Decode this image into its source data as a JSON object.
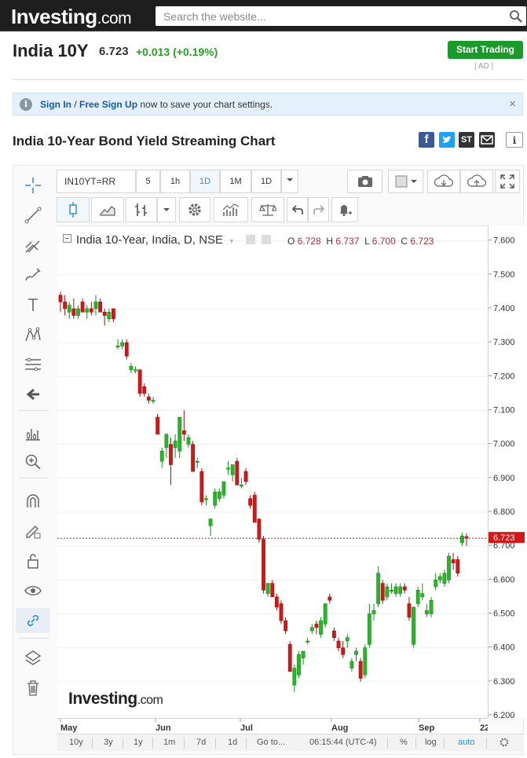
{
  "header": {
    "logo_main": "Investing",
    "logo_suffix": ".com",
    "search_placeholder": "Search the website..."
  },
  "instrument": {
    "name": "India 10Y",
    "price": "6.723",
    "change": "+0.013 (+0.19%)",
    "cta_label": "Start Trading",
    "ad_label": "| AD |"
  },
  "notice": {
    "sign_in": "Sign In",
    "separator": " / ",
    "sign_up": "Free Sign Up",
    "message": " now to save your chart settings.",
    "close": "×"
  },
  "section_title": "India 10-Year Bond Yield Streaming Chart",
  "share": {
    "facebook": "f",
    "stocktwits": "ST",
    "info": "i"
  },
  "toolbar": {
    "symbol": "IN10YT=RR",
    "intervals": [
      "5",
      "1h",
      "1D",
      "1M"
    ],
    "active_interval": "1D",
    "resolution": "1D"
  },
  "chart_legend": {
    "title": "India 10-Year, India, D, NSE",
    "o_label": "O",
    "o": "6.728",
    "h_label": "H",
    "h": "6.737",
    "l_label": "L",
    "l": "6.700",
    "c_label": "C",
    "c": "6.723",
    "last_price": "6.723"
  },
  "watermark": {
    "main": "Investing",
    "suffix": ".com"
  },
  "bottom_bar": {
    "ranges": [
      "10y",
      "3y",
      "1y",
      "1m",
      "7d",
      "1d"
    ],
    "goto": "Go to...",
    "clock": "06:15:44 (UTC-4)",
    "percent": "%",
    "log": "log",
    "auto": "auto"
  },
  "colors": {
    "up": "#2ab52a",
    "down": "#d01818",
    "accent": "#2a8fd6",
    "cta": "#1a9a2b"
  },
  "chart_data": {
    "type": "candlestick",
    "title": "India 10-Year, India, D, NSE",
    "y_ticks": [
      "7.600",
      "7.500",
      "7.400",
      "7.300",
      "7.200",
      "7.100",
      "7.000",
      "6.900",
      "6.800",
      "6.700",
      "6.600",
      "6.500",
      "6.400",
      "6.300",
      "6.200"
    ],
    "x_ticks": [
      "May",
      "Jun",
      "Jul",
      "Aug",
      "Sep",
      "22"
    ],
    "ylim": [
      6.2,
      7.62
    ],
    "candles": [
      {
        "o": 7.44,
        "h": 7.45,
        "l": 7.39,
        "c": 7.42
      },
      {
        "o": 7.42,
        "h": 7.44,
        "l": 7.38,
        "c": 7.4
      },
      {
        "o": 7.39,
        "h": 7.42,
        "l": 7.37,
        "c": 7.41
      },
      {
        "o": 7.4,
        "h": 7.43,
        "l": 7.37,
        "c": 7.38
      },
      {
        "o": 7.38,
        "h": 7.41,
        "l": 7.37,
        "c": 7.4
      },
      {
        "o": 7.42,
        "h": 7.43,
        "l": 7.39,
        "c": 7.39
      },
      {
        "o": 7.39,
        "h": 7.41,
        "l": 7.37,
        "c": 7.4
      },
      {
        "o": 7.4,
        "h": 7.42,
        "l": 7.38,
        "c": 7.39
      },
      {
        "o": 7.4,
        "h": 7.44,
        "l": 7.38,
        "c": 7.42
      },
      {
        "o": 7.42,
        "h": 7.43,
        "l": 7.39,
        "c": 7.39
      },
      {
        "o": 7.39,
        "h": 7.4,
        "l": 7.35,
        "c": 7.38
      },
      {
        "o": 7.37,
        "h": 7.4,
        "l": 7.36,
        "c": 7.39
      },
      {
        "o": 7.4,
        "h": 7.4,
        "l": 7.36,
        "c": 7.37
      },
      {
        "o": 7.29,
        "h": 7.31,
        "l": 7.28,
        "c": 7.29
      },
      {
        "o": 7.29,
        "h": 7.31,
        "l": 7.28,
        "c": 7.3
      },
      {
        "o": 7.3,
        "h": 7.31,
        "l": 7.25,
        "c": 7.26
      },
      {
        "o": 7.22,
        "h": 7.24,
        "l": 7.21,
        "c": 7.23
      },
      {
        "o": 7.22,
        "h": 7.23,
        "l": 7.21,
        "c": 7.22
      },
      {
        "o": 7.22,
        "h": 7.22,
        "l": 7.14,
        "c": 7.15
      },
      {
        "o": 7.17,
        "h": 7.18,
        "l": 7.14,
        "c": 7.15
      },
      {
        "o": 7.14,
        "h": 7.15,
        "l": 7.12,
        "c": 7.13
      },
      {
        "o": 7.13,
        "h": 7.14,
        "l": 7.12,
        "c": 7.13
      },
      {
        "o": 7.08,
        "h": 7.09,
        "l": 7.03,
        "c": 7.03
      },
      {
        "o": 6.95,
        "h": 6.99,
        "l": 6.93,
        "c": 6.98
      },
      {
        "o": 6.99,
        "h": 7.03,
        "l": 6.96,
        "c": 7.03
      },
      {
        "o": 7.0,
        "h": 7.02,
        "l": 6.88,
        "c": 6.94
      },
      {
        "o": 6.99,
        "h": 7.03,
        "l": 6.96,
        "c": 7.01
      },
      {
        "o": 6.98,
        "h": 7.08,
        "l": 6.96,
        "c": 7.08
      },
      {
        "o": 7.04,
        "h": 7.1,
        "l": 7.01,
        "c": 7.03
      },
      {
        "o": 7.0,
        "h": 7.03,
        "l": 6.99,
        "c": 7.02
      },
      {
        "o": 7.0,
        "h": 7.01,
        "l": 6.92,
        "c": 6.92
      },
      {
        "o": 6.95,
        "h": 6.96,
        "l": 6.93,
        "c": 6.95
      },
      {
        "o": 6.92,
        "h": 6.93,
        "l": 6.82,
        "c": 6.83
      },
      {
        "o": 6.84,
        "h": 6.85,
        "l": 6.82,
        "c": 6.84
      },
      {
        "o": 6.76,
        "h": 6.78,
        "l": 6.73,
        "c": 6.78
      },
      {
        "o": 6.82,
        "h": 6.87,
        "l": 6.81,
        "c": 6.86
      },
      {
        "o": 6.84,
        "h": 6.87,
        "l": 6.83,
        "c": 6.86
      },
      {
        "o": 6.85,
        "h": 6.89,
        "l": 6.84,
        "c": 6.89
      },
      {
        "o": 6.93,
        "h": 6.95,
        "l": 6.91,
        "c": 6.93
      },
      {
        "o": 6.91,
        "h": 6.94,
        "l": 6.89,
        "c": 6.94
      },
      {
        "o": 6.95,
        "h": 6.96,
        "l": 6.88,
        "c": 6.88
      },
      {
        "o": 6.88,
        "h": 6.9,
        "l": 6.87,
        "c": 6.88
      },
      {
        "o": 6.92,
        "h": 6.93,
        "l": 6.88,
        "c": 6.89
      },
      {
        "o": 6.84,
        "h": 6.85,
        "l": 6.81,
        "c": 6.82
      },
      {
        "o": 6.85,
        "h": 6.86,
        "l": 6.77,
        "c": 6.77
      },
      {
        "o": 6.78,
        "h": 6.78,
        "l": 6.71,
        "c": 6.72
      },
      {
        "o": 6.72,
        "h": 6.73,
        "l": 6.56,
        "c": 6.57
      },
      {
        "o": 6.56,
        "h": 6.59,
        "l": 6.55,
        "c": 6.59
      },
      {
        "o": 6.59,
        "h": 6.6,
        "l": 6.55,
        "c": 6.55
      },
      {
        "o": 6.55,
        "h": 6.56,
        "l": 6.51,
        "c": 6.52
      },
      {
        "o": 6.53,
        "h": 6.54,
        "l": 6.47,
        "c": 6.48
      },
      {
        "o": 6.48,
        "h": 6.49,
        "l": 6.44,
        "c": 6.45
      },
      {
        "o": 6.41,
        "h": 6.42,
        "l": 6.33,
        "c": 6.33
      },
      {
        "o": 6.29,
        "h": 6.35,
        "l": 6.27,
        "c": 6.34
      },
      {
        "o": 6.32,
        "h": 6.39,
        "l": 6.31,
        "c": 6.38
      },
      {
        "o": 6.37,
        "h": 6.39,
        "l": 6.35,
        "c": 6.39
      },
      {
        "o": 6.42,
        "h": 6.43,
        "l": 6.41,
        "c": 6.42
      },
      {
        "o": 6.45,
        "h": 6.47,
        "l": 6.44,
        "c": 6.46
      },
      {
        "o": 6.47,
        "h": 6.48,
        "l": 6.44,
        "c": 6.46
      },
      {
        "o": 6.44,
        "h": 6.49,
        "l": 6.43,
        "c": 6.48
      },
      {
        "o": 6.47,
        "h": 6.53,
        "l": 6.46,
        "c": 6.53
      },
      {
        "o": 6.55,
        "h": 6.56,
        "l": 6.53,
        "c": 6.54
      },
      {
        "o": 6.45,
        "h": 6.46,
        "l": 6.42,
        "c": 6.43
      },
      {
        "o": 6.42,
        "h": 6.43,
        "l": 6.39,
        "c": 6.4
      },
      {
        "o": 6.4,
        "h": 6.42,
        "l": 6.37,
        "c": 6.38
      },
      {
        "o": 6.42,
        "h": 6.44,
        "l": 6.4,
        "c": 6.43
      },
      {
        "o": 6.34,
        "h": 6.37,
        "l": 6.33,
        "c": 6.36
      },
      {
        "o": 6.38,
        "h": 6.4,
        "l": 6.36,
        "c": 6.39
      },
      {
        "o": 6.36,
        "h": 6.37,
        "l": 6.3,
        "c": 6.31
      },
      {
        "o": 6.32,
        "h": 6.41,
        "l": 6.31,
        "c": 6.4
      },
      {
        "o": 6.41,
        "h": 6.53,
        "l": 6.4,
        "c": 6.5
      },
      {
        "o": 6.5,
        "h": 6.53,
        "l": 6.48,
        "c": 6.51
      },
      {
        "o": 6.53,
        "h": 6.64,
        "l": 6.52,
        "c": 6.62
      },
      {
        "o": 6.59,
        "h": 6.6,
        "l": 6.53,
        "c": 6.54
      },
      {
        "o": 6.55,
        "h": 6.59,
        "l": 6.54,
        "c": 6.58
      },
      {
        "o": 6.57,
        "h": 6.59,
        "l": 6.56,
        "c": 6.57
      },
      {
        "o": 6.56,
        "h": 6.59,
        "l": 6.55,
        "c": 6.58
      },
      {
        "o": 6.56,
        "h": 6.59,
        "l": 6.55,
        "c": 6.58
      },
      {
        "o": 6.58,
        "h": 6.59,
        "l": 6.56,
        "c": 6.57
      },
      {
        "o": 6.53,
        "h": 6.55,
        "l": 6.48,
        "c": 6.49
      },
      {
        "o": 6.41,
        "h": 6.52,
        "l": 6.4,
        "c": 6.52
      },
      {
        "o": 6.53,
        "h": 6.58,
        "l": 6.52,
        "c": 6.57
      },
      {
        "o": 6.55,
        "h": 6.59,
        "l": 6.54,
        "c": 6.56
      },
      {
        "o": 6.5,
        "h": 6.53,
        "l": 6.49,
        "c": 6.51
      },
      {
        "o": 6.5,
        "h": 6.55,
        "l": 6.49,
        "c": 6.54
      },
      {
        "o": 6.58,
        "h": 6.62,
        "l": 6.57,
        "c": 6.6
      },
      {
        "o": 6.6,
        "h": 6.62,
        "l": 6.59,
        "c": 6.61
      },
      {
        "o": 6.59,
        "h": 6.63,
        "l": 6.58,
        "c": 6.62
      },
      {
        "o": 6.6,
        "h": 6.68,
        "l": 6.59,
        "c": 6.67
      },
      {
        "o": 6.66,
        "h": 6.68,
        "l": 6.63,
        "c": 6.65
      },
      {
        "o": 6.66,
        "h": 6.67,
        "l": 6.61,
        "c": 6.62
      },
      {
        "o": 6.71,
        "h": 6.74,
        "l": 6.7,
        "c": 6.73
      },
      {
        "o": 6.728,
        "h": 6.737,
        "l": 6.7,
        "c": 6.723
      }
    ]
  }
}
